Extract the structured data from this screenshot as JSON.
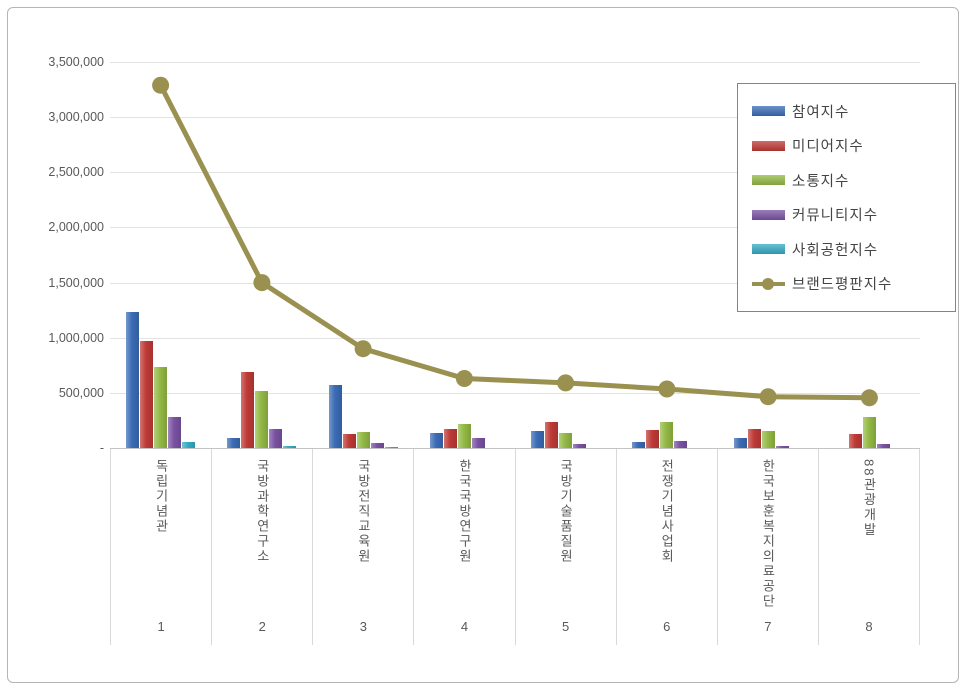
{
  "frame": {
    "background": "#ffffff",
    "border_color": "#b5b5b5"
  },
  "colors": {
    "participation_blue": "#3a6cb5",
    "media_red": "#bf3a36",
    "communication_green": "#93b944",
    "community_purple": "#7a52a3",
    "social_teal": "#35aac4",
    "brand_olive": "#9a9151",
    "gridline": "#e3e3e3",
    "axis": "#c3c3c3",
    "tick_text": "#595959",
    "legend_text": "#444444"
  },
  "chart_data": {
    "type": "bar",
    "title": "",
    "xlabel": "",
    "ylabel": "",
    "categories": [
      "독립기념관",
      "국방과학연구소",
      "국방전직교육원",
      "한국국방연구원",
      "국방기술품질원",
      "전쟁기념사업회",
      "한국보훈복지의료공단",
      "88관광개발"
    ],
    "category_numbers": [
      "1",
      "2",
      "3",
      "4",
      "5",
      "6",
      "7",
      "8"
    ],
    "series": [
      {
        "name": "참여지수",
        "type": "bar",
        "color": "#3a6cb5",
        "values": [
          1230000,
          90000,
          570000,
          135000,
          155000,
          55000,
          90000,
          0
        ]
      },
      {
        "name": "미디어지수",
        "type": "bar",
        "color": "#bf3a36",
        "values": [
          970000,
          690000,
          125000,
          175000,
          235000,
          165000,
          170000,
          125000
        ]
      },
      {
        "name": "소통지수",
        "type": "bar",
        "color": "#93b944",
        "values": [
          730000,
          515000,
          145000,
          220000,
          135000,
          235000,
          155000,
          285000
        ]
      },
      {
        "name": "커뮤니티지수",
        "type": "bar",
        "color": "#7a52a3",
        "values": [
          280000,
          170000,
          45000,
          95000,
          40000,
          65000,
          20000,
          40000
        ]
      },
      {
        "name": "사회공헌지수",
        "type": "bar",
        "color": "#35aac4",
        "values": [
          55000,
          15000,
          10000,
          0,
          0,
          0,
          0,
          0
        ]
      },
      {
        "name": "브랜드평판지수",
        "type": "line",
        "color": "#9a9151",
        "values": [
          3290000,
          1500000,
          900000,
          630000,
          590000,
          535000,
          465000,
          455000
        ]
      }
    ],
    "y_axis": {
      "min": 0,
      "max": 3500000,
      "tick_interval": 500000,
      "tick_labels_top_to_bottom": [
        "3,500,000",
        "3,000,000",
        "2,500,000",
        "2,000,000",
        "1,500,000",
        "1,000,000",
        "500,000",
        "-"
      ]
    },
    "grid": true,
    "legend_position": "top-right"
  }
}
